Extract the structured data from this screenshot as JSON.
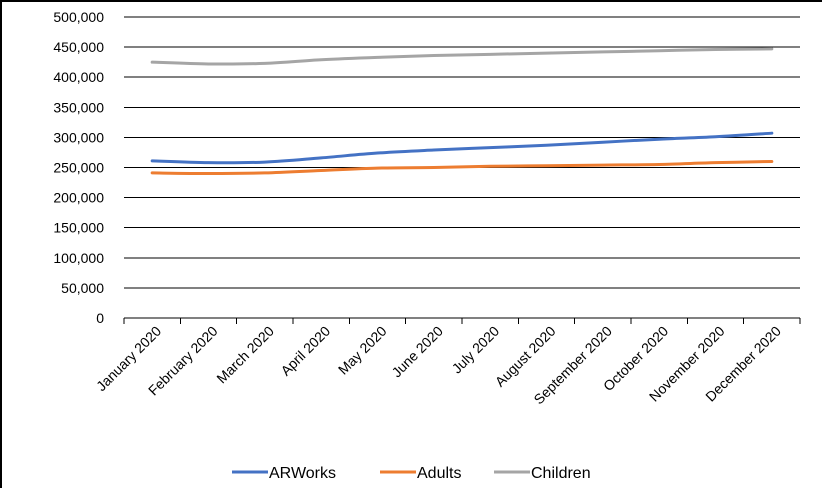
{
  "chart_data": {
    "type": "line",
    "title": "",
    "xlabel": "",
    "ylabel": "",
    "categories": [
      "January 2020",
      "February 2020",
      "March 2020",
      "April 2020",
      "May 2020",
      "June 2020",
      "July 2020",
      "August 2020",
      "September 2020",
      "October 2020",
      "November 2020",
      "December 2020"
    ],
    "ylim": [
      0,
      500000
    ],
    "yticks": [
      0,
      50000,
      100000,
      150000,
      200000,
      250000,
      300000,
      350000,
      400000,
      450000,
      500000
    ],
    "ytick_labels": [
      "0",
      "50,000",
      "100,000",
      "150,000",
      "200,000",
      "250,000",
      "300,000",
      "350,000",
      "400,000",
      "450,000",
      "500,000"
    ],
    "grid": true,
    "legend_position": "bottom",
    "series": [
      {
        "name": "ARWorks",
        "color": "#4472C4",
        "values": [
          261000,
          258000,
          259000,
          266000,
          274000,
          279000,
          283000,
          287000,
          292000,
          297000,
          301000,
          307000
        ]
      },
      {
        "name": "Adults",
        "color": "#ED7D31",
        "values": [
          241000,
          240000,
          241000,
          245000,
          249000,
          250000,
          252000,
          253000,
          254000,
          255000,
          258000,
          260000
        ]
      },
      {
        "name": "Children",
        "color": "#A5A5A5",
        "values": [
          425000,
          422000,
          423000,
          429000,
          433000,
          436000,
          438000,
          440000,
          442000,
          444000,
          446000,
          447000
        ]
      }
    ]
  }
}
